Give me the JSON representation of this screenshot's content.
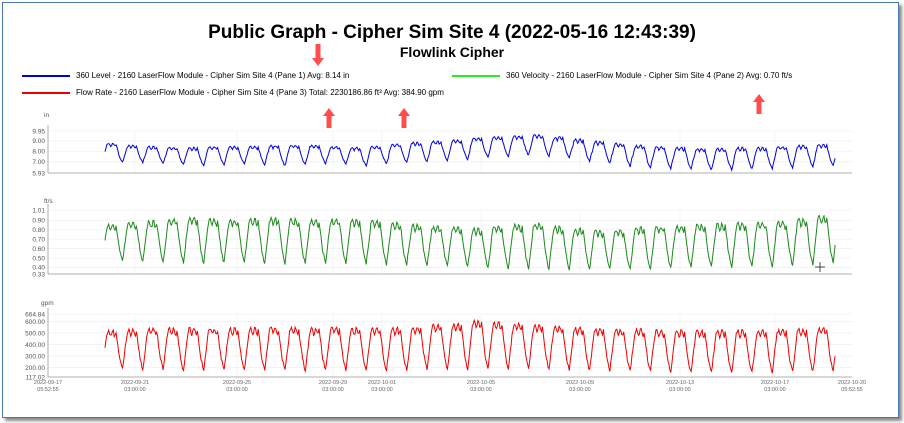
{
  "header": {
    "title": "Public Graph - Cipher Sim Site 4 (2022-05-16 12:43:39)",
    "subtitle": "Flowlink Cipher"
  },
  "legend": [
    {
      "label": "360 Level - 2160 LaserFlow Module - Cipher Sim Site 4 (Pane 1) Avg: 8.14 in",
      "color": "#0000dd"
    },
    {
      "label": "360 Velocity - 2160 LaserFlow Module - Cipher Sim Site 4 (Pane 2) Avg: 0.70 ft/s",
      "color": "#22ee22"
    },
    {
      "label": "Flow Rate - 2160 LaserFlow Module - Cipher Sim Site 4 (Pane 3) Total: 2230186.86 ft³ Avg: 384.90 gpm",
      "color": "#ee0000"
    }
  ],
  "annotation_arrow_color": "#ff4d4d",
  "chart_data": [
    {
      "type": "line",
      "unit": "in",
      "ylim": [
        5.93,
        9.95
      ],
      "yticks": [
        "9.95",
        "9.00",
        "8.00",
        "7.00",
        "5.93"
      ],
      "ytick_values": [
        9.95,
        9.0,
        8.0,
        7.0,
        5.93
      ],
      "color": "#0000dd",
      "series_name": "360 Level",
      "cycles": 36,
      "daily_ranges": [
        [
          6.9,
          8.8
        ],
        [
          6.9,
          8.6
        ],
        [
          6.8,
          8.5
        ],
        [
          6.7,
          8.4
        ],
        [
          6.6,
          8.4
        ],
        [
          6.7,
          8.5
        ],
        [
          6.8,
          8.5
        ],
        [
          6.7,
          8.5
        ],
        [
          6.6,
          8.6
        ],
        [
          6.7,
          8.6
        ],
        [
          6.8,
          8.6
        ],
        [
          6.7,
          8.5
        ],
        [
          6.6,
          8.4
        ],
        [
          6.8,
          8.5
        ],
        [
          6.9,
          8.7
        ],
        [
          7.0,
          8.9
        ],
        [
          7.1,
          9.0
        ],
        [
          7.2,
          9.1
        ],
        [
          7.4,
          9.3
        ],
        [
          7.5,
          9.4
        ],
        [
          7.6,
          9.5
        ],
        [
          7.5,
          9.6
        ],
        [
          7.3,
          9.4
        ],
        [
          7.0,
          9.2
        ],
        [
          6.8,
          9.0
        ],
        [
          6.5,
          8.8
        ],
        [
          6.4,
          8.6
        ],
        [
          6.3,
          8.5
        ],
        [
          6.3,
          8.4
        ],
        [
          6.2,
          8.3
        ],
        [
          6.2,
          8.3
        ],
        [
          6.3,
          8.4
        ],
        [
          6.3,
          8.4
        ],
        [
          6.4,
          8.5
        ],
        [
          6.5,
          8.6
        ],
        [
          6.6,
          8.7
        ]
      ]
    },
    {
      "type": "line",
      "unit": "ft/s",
      "ylim": [
        0.33,
        1.01
      ],
      "yticks": [
        "1.01",
        "0.90",
        "0.80",
        "0.70",
        "0.60",
        "0.50",
        "0.40",
        "0.33"
      ],
      "ytick_values": [
        1.01,
        0.9,
        0.8,
        0.7,
        0.6,
        0.5,
        0.4,
        0.33
      ],
      "color": "#1b8a1b",
      "series_name": "360 Velocity",
      "cycles": 36,
      "daily_ranges": [
        [
          0.47,
          0.86
        ],
        [
          0.46,
          0.88
        ],
        [
          0.45,
          0.9
        ],
        [
          0.44,
          0.92
        ],
        [
          0.44,
          0.93
        ],
        [
          0.44,
          0.92
        ],
        [
          0.45,
          0.91
        ],
        [
          0.44,
          0.92
        ],
        [
          0.43,
          0.93
        ],
        [
          0.43,
          0.92
        ],
        [
          0.44,
          0.91
        ],
        [
          0.43,
          0.92
        ],
        [
          0.43,
          0.91
        ],
        [
          0.42,
          0.9
        ],
        [
          0.42,
          0.88
        ],
        [
          0.41,
          0.86
        ],
        [
          0.4,
          0.84
        ],
        [
          0.4,
          0.83
        ],
        [
          0.39,
          0.82
        ],
        [
          0.38,
          0.84
        ],
        [
          0.38,
          0.86
        ],
        [
          0.37,
          0.87
        ],
        [
          0.37,
          0.84
        ],
        [
          0.38,
          0.82
        ],
        [
          0.38,
          0.8
        ],
        [
          0.38,
          0.8
        ],
        [
          0.38,
          0.83
        ],
        [
          0.39,
          0.84
        ],
        [
          0.39,
          0.85
        ],
        [
          0.39,
          0.86
        ],
        [
          0.39,
          0.87
        ],
        [
          0.39,
          0.88
        ],
        [
          0.4,
          0.88
        ],
        [
          0.41,
          0.89
        ],
        [
          0.42,
          0.92
        ],
        [
          0.44,
          0.95
        ]
      ]
    },
    {
      "type": "line",
      "unit": "gpm",
      "ylim": [
        117.02,
        664.84
      ],
      "yticks": [
        "664.84",
        "600.00",
        "500.00",
        "400.00",
        "300.00",
        "200.00",
        "117.02"
      ],
      "ytick_values": [
        664.84,
        600.0,
        500.0,
        400.0,
        300.0,
        200.0,
        117.02
      ],
      "color": "#ee0000",
      "series_name": "Flow Rate",
      "cycles": 36,
      "daily_ranges": [
        [
          185,
          525
        ],
        [
          180,
          535
        ],
        [
          175,
          545
        ],
        [
          170,
          548
        ],
        [
          168,
          550
        ],
        [
          170,
          548
        ],
        [
          172,
          545
        ],
        [
          170,
          548
        ],
        [
          168,
          552
        ],
        [
          168,
          550
        ],
        [
          170,
          548
        ],
        [
          168,
          550
        ],
        [
          167,
          548
        ],
        [
          168,
          545
        ],
        [
          170,
          550
        ],
        [
          172,
          560
        ],
        [
          174,
          575
        ],
        [
          176,
          590
        ],
        [
          178,
          610
        ],
        [
          180,
          598
        ],
        [
          180,
          585
        ],
        [
          176,
          572
        ],
        [
          172,
          560
        ],
        [
          168,
          550
        ],
        [
          165,
          545
        ],
        [
          160,
          540
        ],
        [
          158,
          536
        ],
        [
          155,
          530
        ],
        [
          150,
          528
        ],
        [
          148,
          526
        ],
        [
          147,
          528
        ],
        [
          148,
          530
        ],
        [
          150,
          532
        ],
        [
          155,
          535
        ],
        [
          160,
          540
        ],
        [
          168,
          545
        ]
      ]
    }
  ],
  "x_axis": {
    "start_label": [
      "2022-09-17",
      "05:52:55"
    ],
    "end_label": [
      "2022-10-20",
      "05:52:55"
    ],
    "date_ticks": [
      {
        "date": "2022-09-21",
        "time": "03:00:00"
      },
      {
        "date": "2022-09-25",
        "time": "03:00:00"
      },
      {
        "date": "2022-09-29",
        "time": "03:00:00"
      },
      {
        "date": "2022-10-01",
        "time": "03:00:00"
      },
      {
        "date": "2022-10-05",
        "time": "03:00:00"
      },
      {
        "date": "2022-10-09",
        "time": "03:00:00"
      },
      {
        "date": "2022-10-13",
        "time": "03:00:00"
      },
      {
        "date": "2022-10-17",
        "time": "03:00:00"
      }
    ]
  }
}
